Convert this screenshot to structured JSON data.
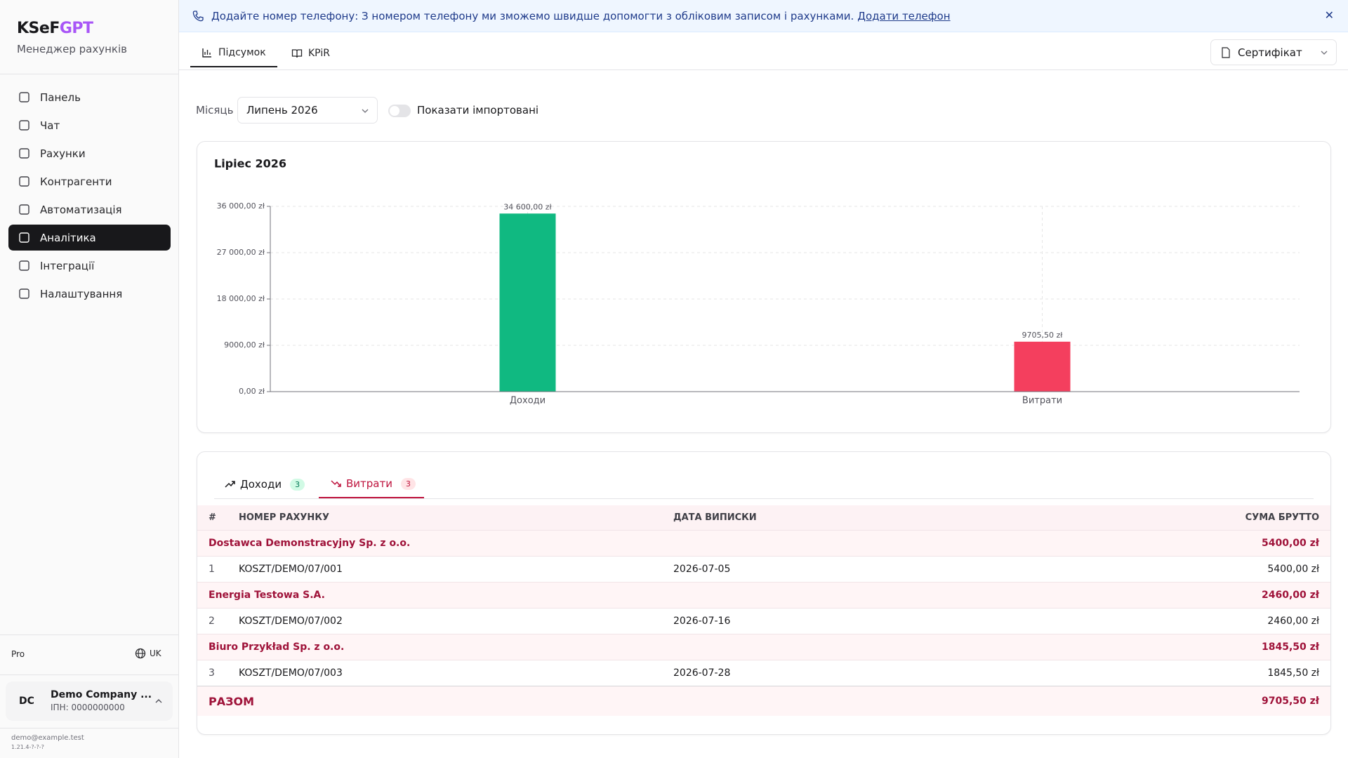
{
  "sidebar": {
    "logo_a": "KSeF",
    "logo_b": "GPT",
    "subtitle": "Менеджер рахунків",
    "nav": [
      "Панель",
      "Чат",
      "Рахунки",
      "Контрагенти",
      "Автоматизація",
      "Аналітика",
      "Інтеграції",
      "Налаштування"
    ],
    "plan": "Pro",
    "lang": "UK",
    "user_initials": "DC",
    "user_name": "Demo Company ...",
    "user_tax": "ІПН: 0000000000",
    "email": "demo@example.test",
    "version": "1.21.4-?-?-?"
  },
  "banner": {
    "text": "Додайте номер телефону: З номером телефону ми зможемо швидше допомогти з обліковим записом і рахунками.",
    "link": "Додати телефон"
  },
  "tabs": [
    "Підсумок",
    "KPiR"
  ],
  "certificate": "Сертифікат",
  "filters": {
    "month_label": "Місяць",
    "month": "Липень 2026",
    "toggle": "Показати імпортовані"
  },
  "chart_data": {
    "type": "bar",
    "title": "Lipiec 2026",
    "categories": [
      "Доходи",
      "Витрати"
    ],
    "values": [
      34600,
      9705.5
    ],
    "value_labels": [
      "34 600,00 zł",
      "9705,50 zł"
    ],
    "colors": [
      "#10b981",
      "#f43f5e"
    ],
    "ylim": [
      0,
      36000
    ],
    "yticks": [
      {
        "value": 0,
        "label": "0,00 zł"
      },
      {
        "value": 9000,
        "label": "9000,00 zł"
      },
      {
        "value": 18000,
        "label": "18 000,00 zł"
      },
      {
        "value": 27000,
        "label": "27 000,00 zł"
      },
      {
        "value": 36000,
        "label": "36 000,00 zł"
      }
    ],
    "grid": true
  },
  "table": {
    "tabs": [
      {
        "label": "Доходи",
        "count": 3
      },
      {
        "label": "Витрати",
        "count": 3
      }
    ],
    "headers": [
      "#",
      "НОМЕР РАХУНКУ",
      "ДАТА ВИПИСКИ",
      "СУМА БРУТТО"
    ],
    "groups": [
      {
        "name": "Dostawca Demonstracyjny Sp. z o.o.",
        "total": "5400,00 zł",
        "rows": [
          [
            "1",
            "KOSZT/DEMO/07/001",
            "2026-07-05",
            "5400,00 zł"
          ]
        ]
      },
      {
        "name": "Energia Testowa S.A.",
        "total": "2460,00 zł",
        "rows": [
          [
            "2",
            "KOSZT/DEMO/07/002",
            "2026-07-16",
            "2460,00 zł"
          ]
        ]
      },
      {
        "name": "Biuro Przykład Sp. z o.o.",
        "total": "1845,50 zł",
        "rows": [
          [
            "3",
            "KOSZT/DEMO/07/003",
            "2026-07-28",
            "1845,50 zł"
          ]
        ]
      }
    ],
    "total_label": "РАЗОМ",
    "total": "9705,50 zł"
  }
}
